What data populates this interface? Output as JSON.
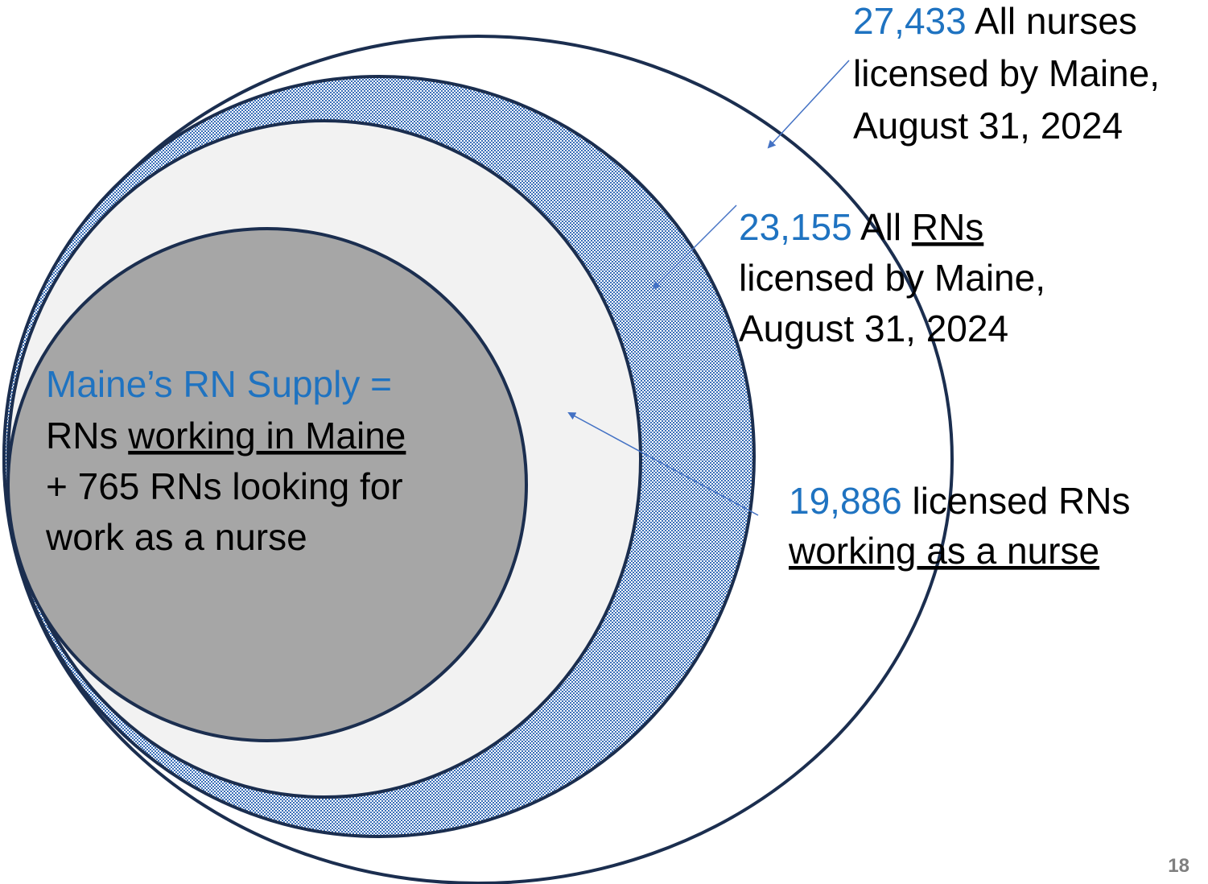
{
  "nurses": {
    "value": "27,433",
    "line1": "All nurses",
    "line2": "licensed by Maine,",
    "line3": "August 31, 2024"
  },
  "rns": {
    "value": "23,155",
    "line1_a": "All",
    "line1_b": "RNs",
    "line2": "licensed by Maine,",
    "line3": "August 31, 2024"
  },
  "working": {
    "value": "19,886",
    "line1": "licensed RNs",
    "line2": "working as a nurse"
  },
  "supply": {
    "title": "Maine’s RN Supply =",
    "line2_a": "RNs",
    "line2_b": "working in Maine",
    "line3": "+ 765 RNs looking for",
    "line4": "work as a nurse"
  },
  "page_number": "18"
}
